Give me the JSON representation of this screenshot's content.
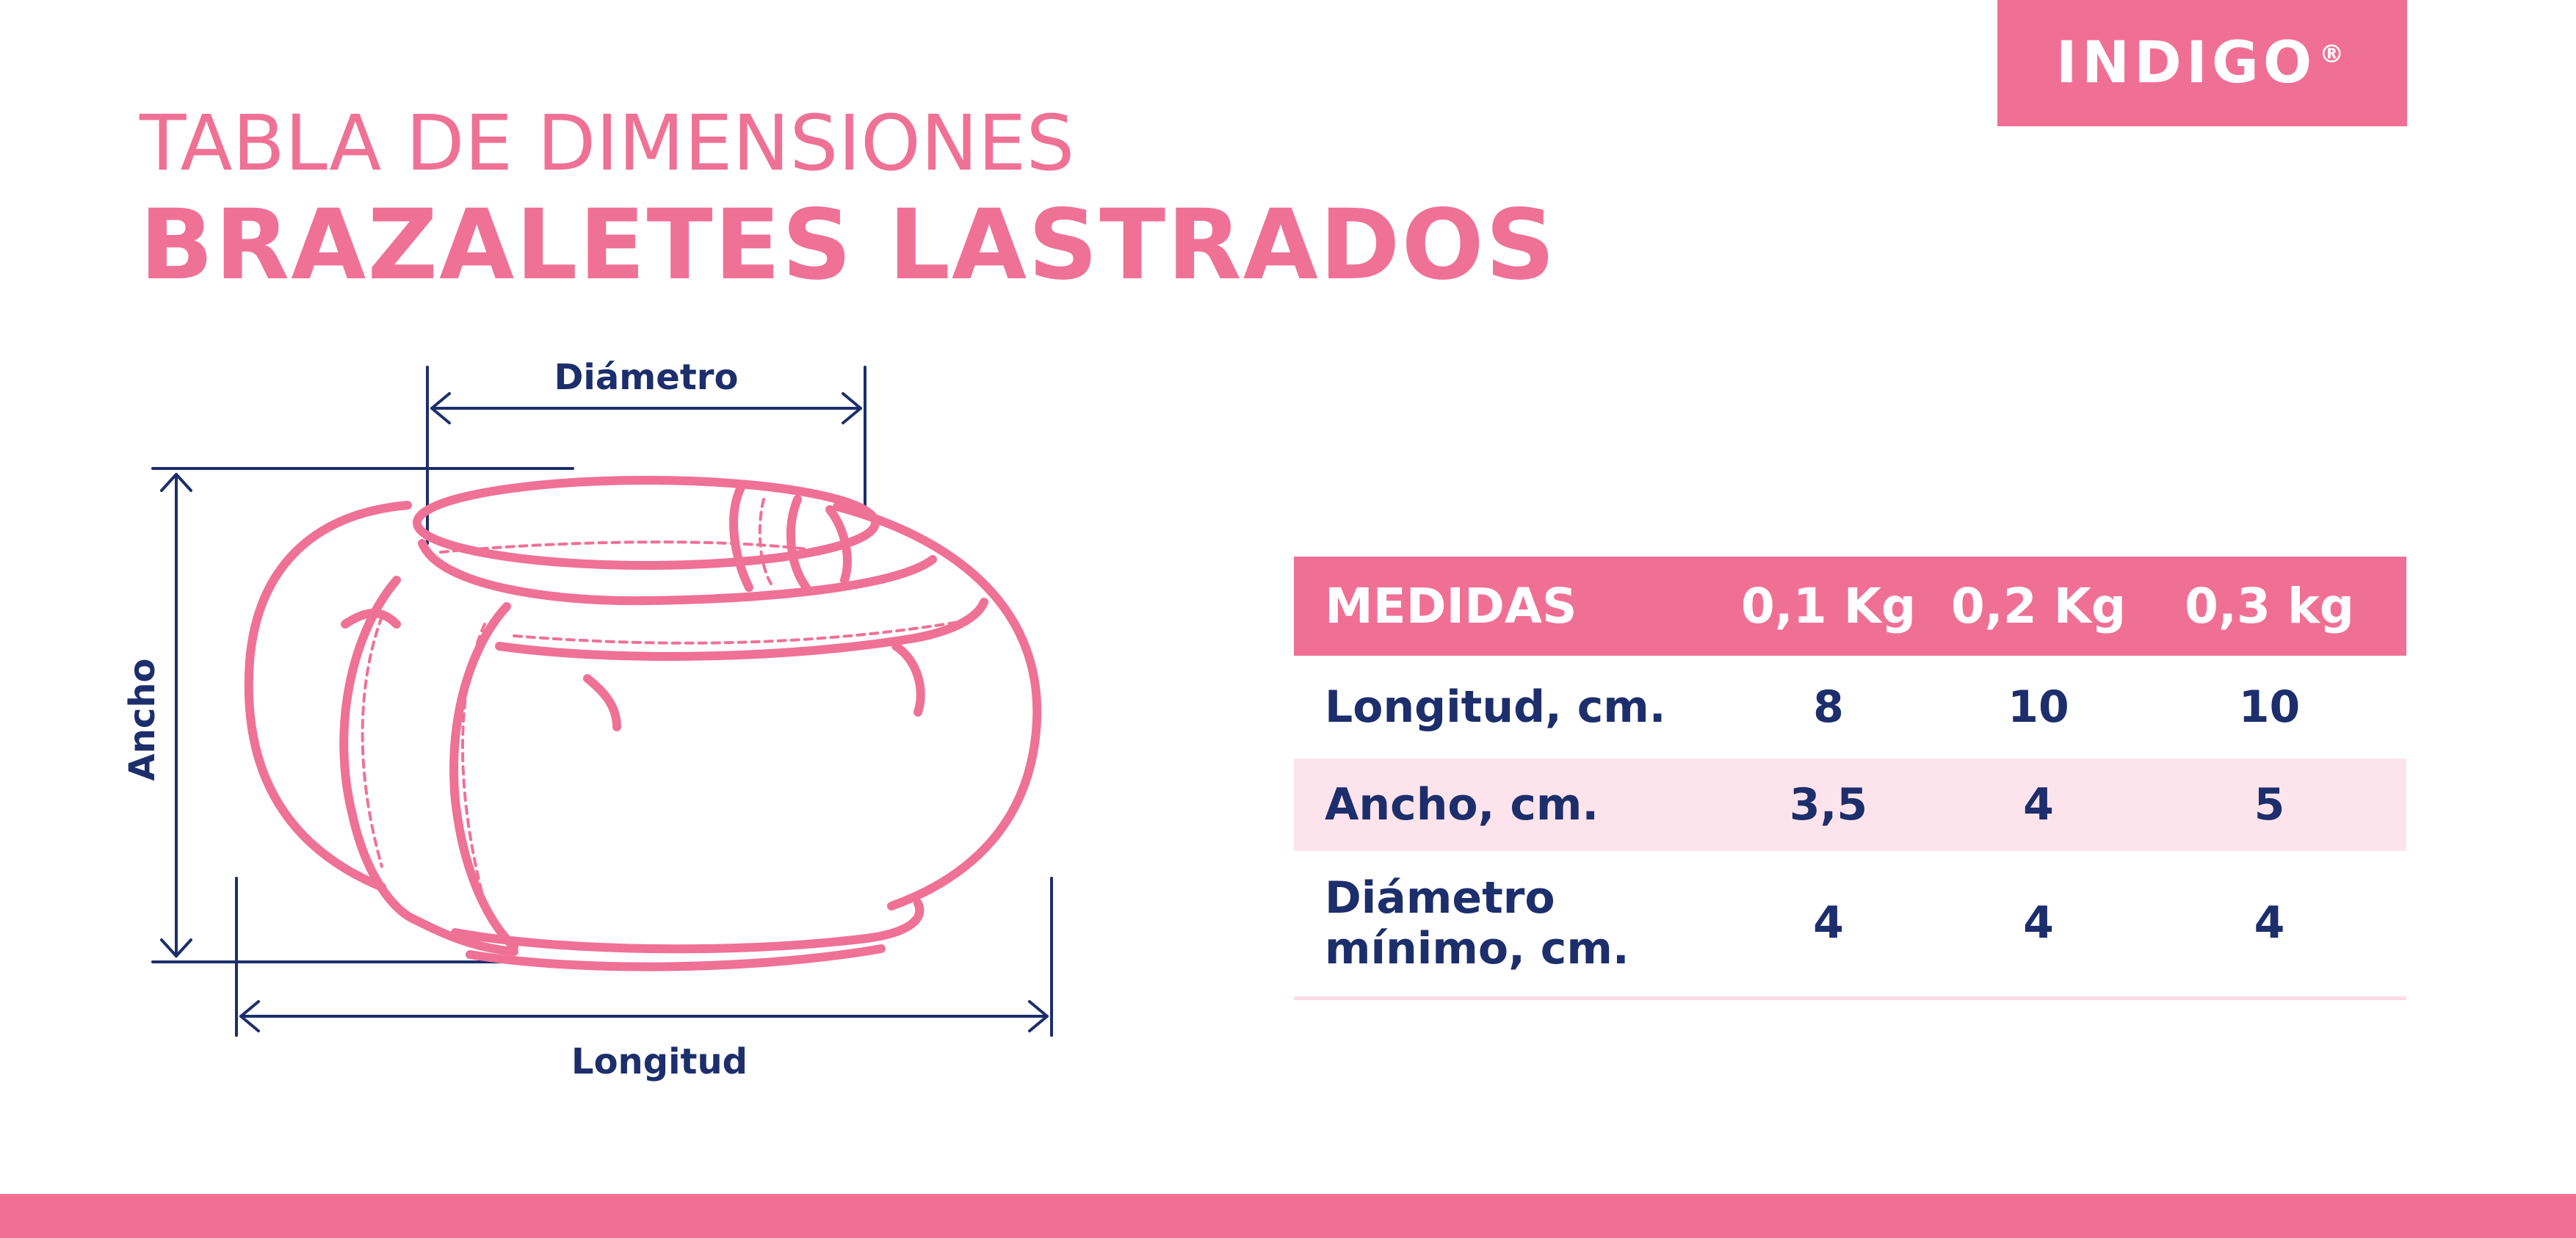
{
  "brand": {
    "name": "INDIGO",
    "registered": "®",
    "accent_color": "#f07095",
    "text_color": "#1c2e6b"
  },
  "header": {
    "title_line1": "TABLA DE DIMENSIONES",
    "title_line2": "BRAZALETES LASTRADOS"
  },
  "diagram": {
    "label_diameter": "Diámetro",
    "label_width": "Ancho",
    "label_length": "Longitud"
  },
  "table": {
    "columns": [
      "MEDIDAS",
      "0,1 Kg",
      "0,2 Kg",
      "0,3 kg"
    ],
    "rows": [
      {
        "label": "Longitud, cm.",
        "values": [
          "8",
          "10",
          "10"
        ]
      },
      {
        "label": "Ancho, cm.",
        "values": [
          "3,5",
          "4",
          "5"
        ]
      },
      {
        "label_line1": "Diámetro",
        "label_line2": "mínimo, cm.",
        "values": [
          "4",
          "4",
          "4"
        ]
      }
    ]
  }
}
